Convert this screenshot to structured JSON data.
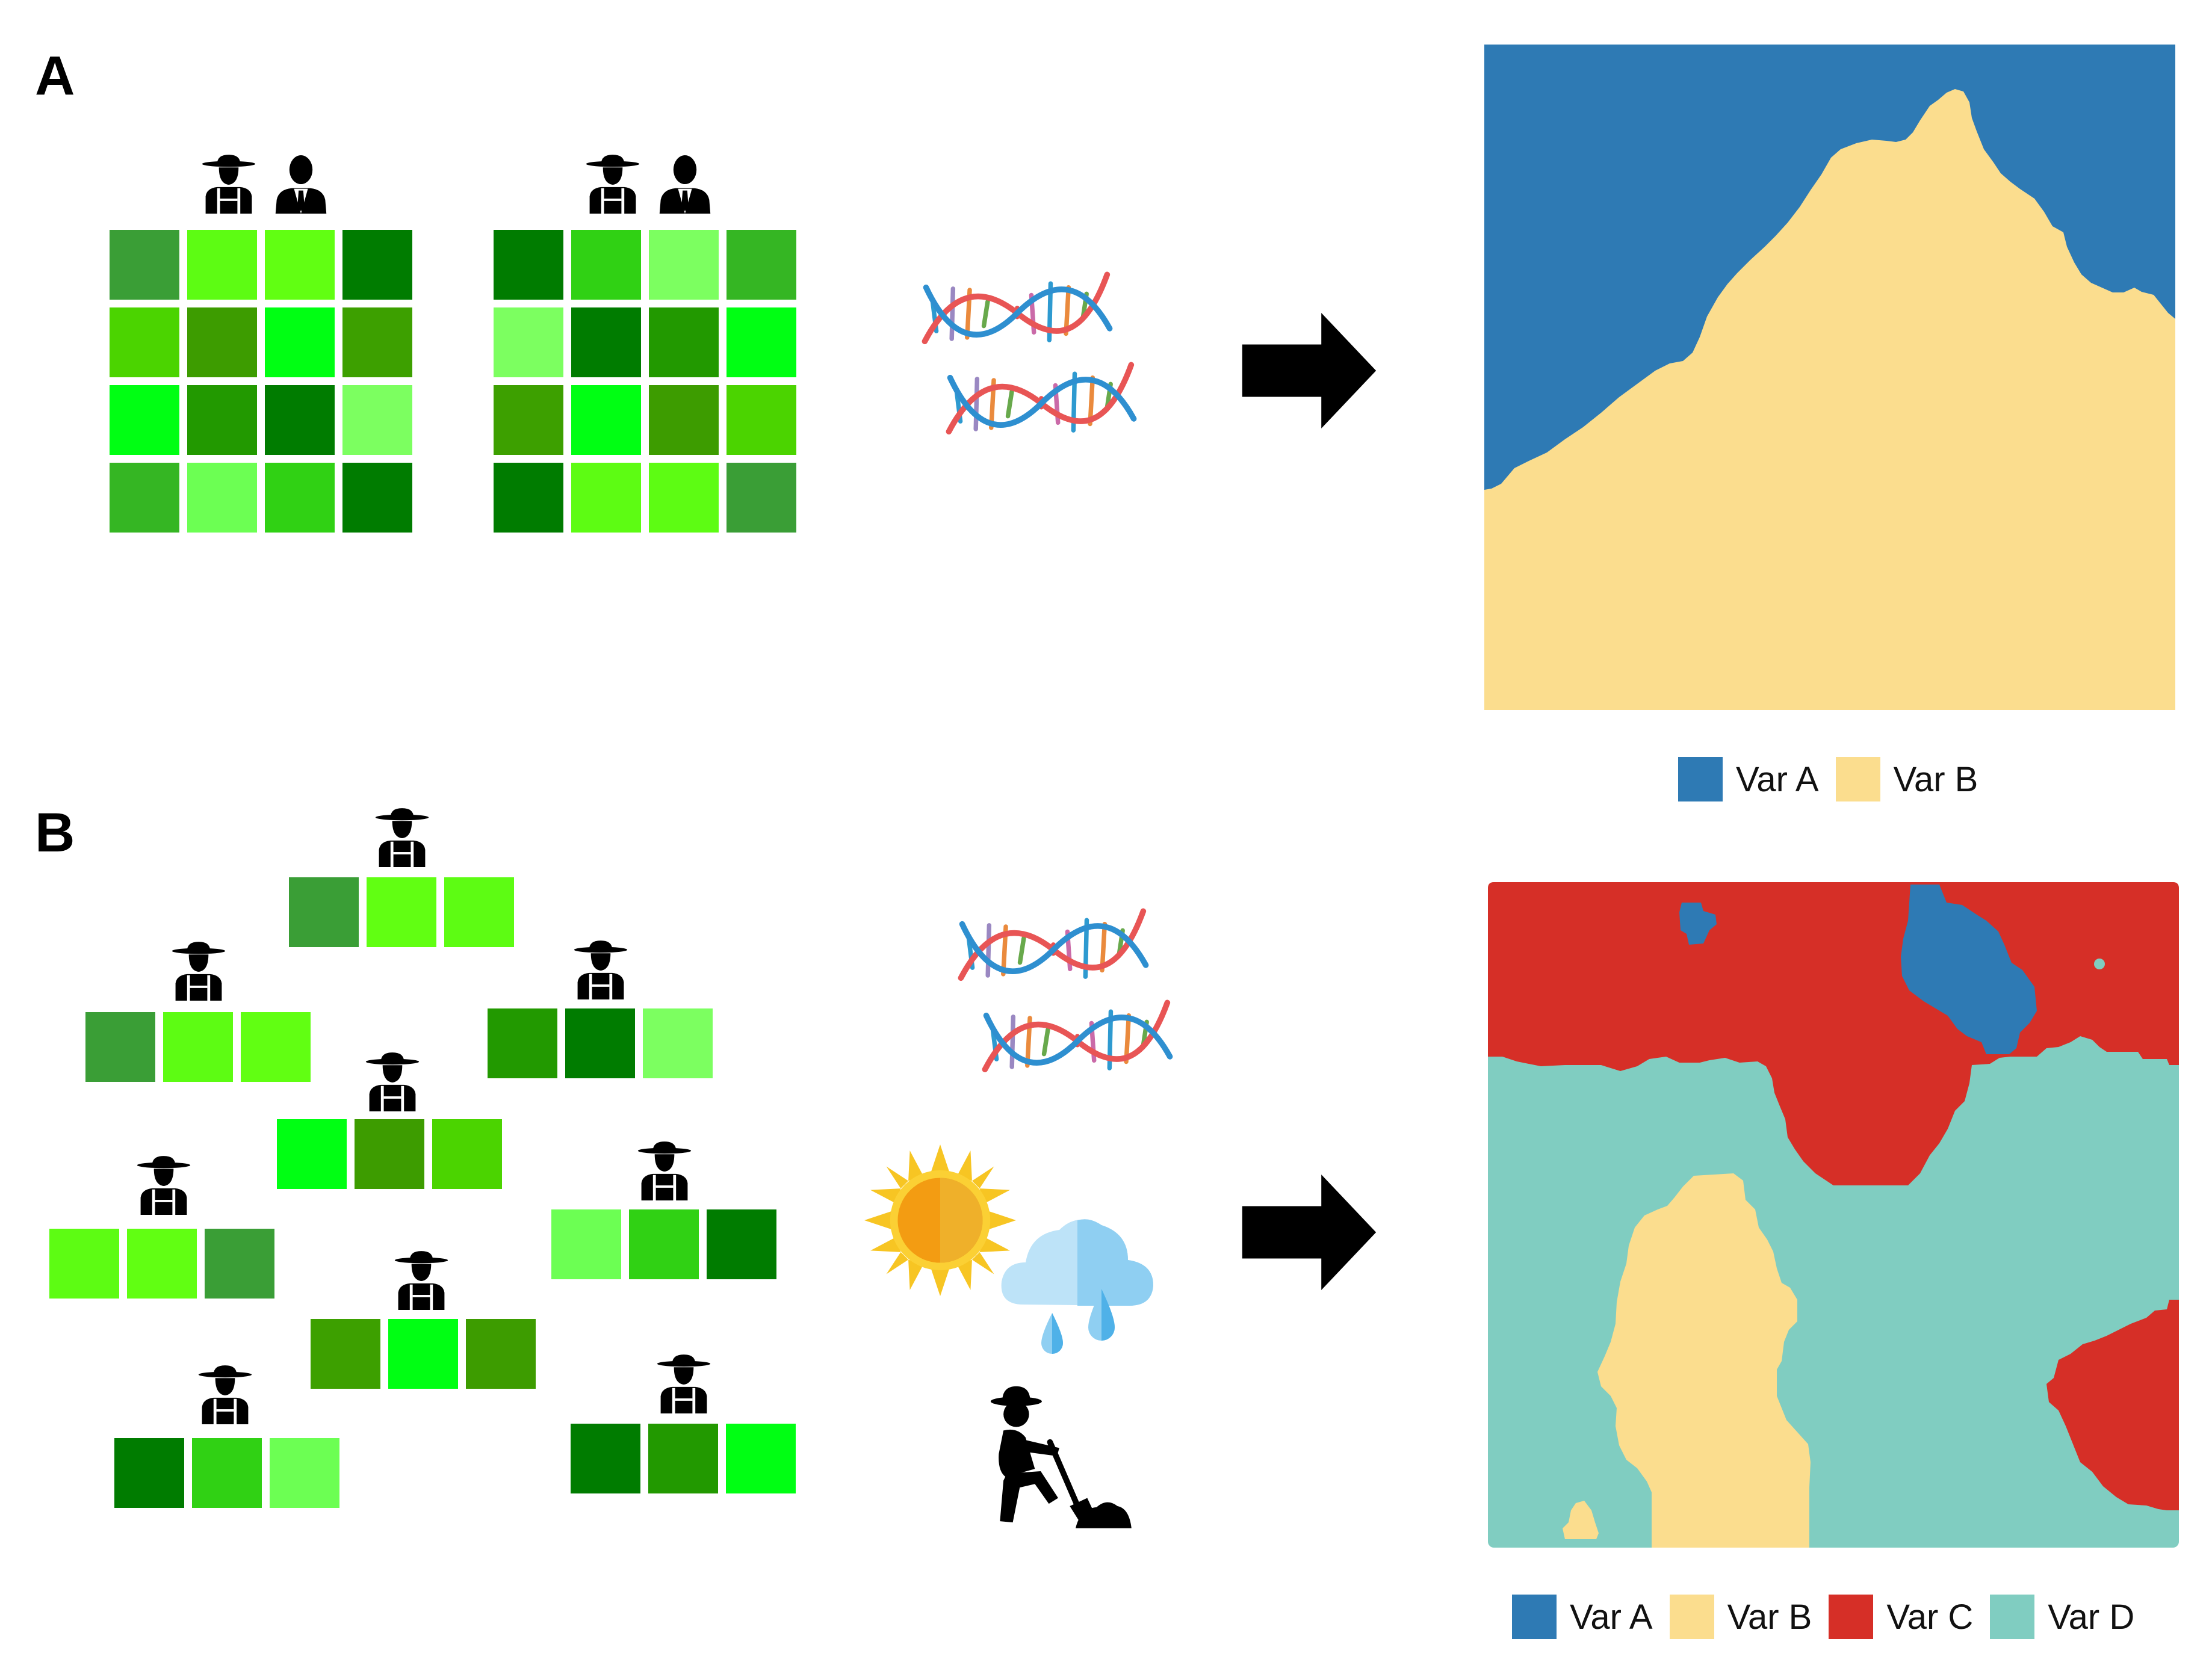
{
  "panels": [
    {
      "label": "A",
      "legend": [
        "Var A",
        "Var B"
      ]
    },
    {
      "label": "B",
      "legend": [
        "Var A",
        "Var B",
        "Var C",
        "Var D"
      ]
    }
  ],
  "colors": {
    "var_a": "#2e7ab4",
    "var_b": "#fbdd8e",
    "var_c": "#d62f27",
    "var_d": "#80cdc1",
    "greens": [
      "#3a9e36",
      "#5dfc13",
      "#61ff12",
      "#007c00",
      "#4bd400",
      "#3da000",
      "#00ff13",
      "#229900",
      "#7cff60",
      "#30d114",
      "#35b623",
      "#6cff53"
    ]
  },
  "icons": [
    "farmer-icon",
    "businessman-icon",
    "dna-icon",
    "sun-icon",
    "rain-cloud-icon",
    "gardener-icon",
    "arrow-right-icon"
  ]
}
